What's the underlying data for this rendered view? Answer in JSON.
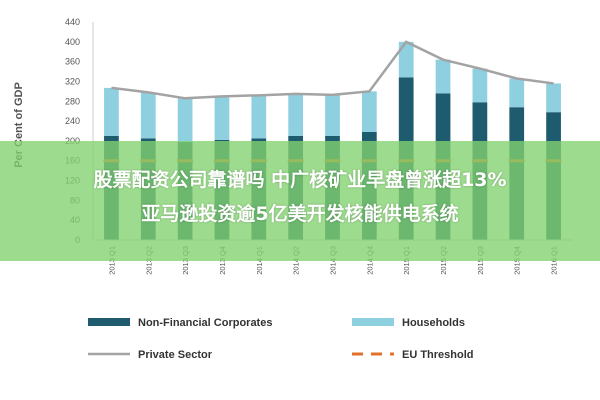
{
  "chart_data": {
    "type": "bar",
    "title": "",
    "ylabel": "Per Cent of GDP",
    "xlabel": "",
    "ylim": [
      0,
      440
    ],
    "yticks": [
      0,
      40,
      80,
      120,
      160,
      200,
      240,
      280,
      320,
      360,
      400,
      440
    ],
    "categories": [
      "2013 Q1",
      "2013 Q2",
      "2013 Q3",
      "2013 Q4",
      "2014 Q1",
      "2014 Q2",
      "2014 Q3",
      "2014 Q4",
      "2015 Q1",
      "2015 Q2",
      "2015 Q3",
      "2015 Q4",
      "2016 Q1"
    ],
    "series": [
      {
        "name": "Non-Financial Corporates",
        "kind": "stacked-bar",
        "color": "#1f5b6e",
        "values": [
          210,
          205,
          198,
          202,
          205,
          210,
          210,
          218,
          328,
          296,
          278,
          268,
          258
        ]
      },
      {
        "name": "Households",
        "kind": "stacked-bar",
        "color": "#8ecfe0",
        "values": [
          97,
          93,
          88,
          88,
          87,
          85,
          83,
          82,
          72,
          68,
          68,
          58,
          58
        ]
      },
      {
        "name": "Private Sector",
        "kind": "line",
        "color": "#a3a3a3",
        "values": [
          307,
          298,
          286,
          290,
          292,
          295,
          293,
          300,
          400,
          364,
          346,
          326,
          316
        ]
      },
      {
        "name": "EU Threshold",
        "kind": "dash-line",
        "color": "#e0702a",
        "values": [
          160,
          160,
          160,
          160,
          160,
          160,
          160,
          160,
          160,
          160,
          160,
          160,
          160
        ]
      }
    ],
    "legend": {
      "position": "bottom"
    },
    "grid": false
  },
  "banner": {
    "line1": "股票配资公司靠谱吗 中广核矿业早盘曾涨超13%",
    "line2": "亚马逊投资逾5亿美开发核能供电系统"
  }
}
